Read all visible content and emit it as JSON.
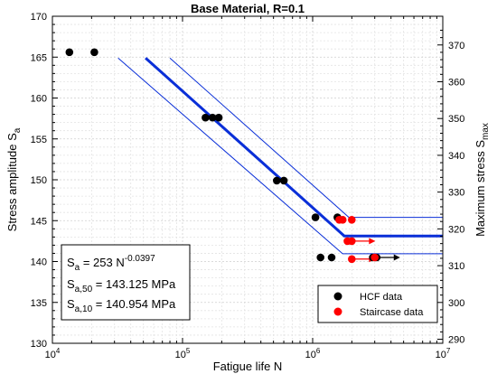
{
  "chart_data": {
    "type": "scatter",
    "title": "Base Material, R=0.1",
    "xlabel": "Fatigue life N",
    "ylabel": {
      "main": "Stress amplitude S",
      "sub": "a"
    },
    "y2label": {
      "main": "Maximum stress S",
      "sub": "max"
    },
    "xscale": "log",
    "xlim": [
      10000,
      10000000
    ],
    "xticks": [
      {
        "value": 10000,
        "base": "10",
        "exp": "4"
      },
      {
        "value": 100000,
        "base": "10",
        "exp": "5"
      },
      {
        "value": 1000000,
        "base": "10",
        "exp": "6"
      },
      {
        "value": 10000000,
        "base": "10",
        "exp": "7"
      }
    ],
    "ylim": [
      130,
      170
    ],
    "yticks": [
      "130",
      "135",
      "140",
      "145",
      "150",
      "155",
      "160",
      "165",
      "170"
    ],
    "y2lim": [
      288.9,
      377.8
    ],
    "y2ticks": [
      "290",
      "300",
      "310",
      "320",
      "330",
      "340",
      "350",
      "360",
      "370"
    ],
    "grid": true,
    "legend_position": "bottom-right",
    "series": [
      {
        "name": "HCF data",
        "color": "#000000",
        "points": [
          [
            13500,
            165.6
          ],
          [
            21000,
            165.6
          ],
          [
            150000,
            157.6
          ],
          [
            170000,
            157.6
          ],
          [
            190000,
            157.6
          ],
          [
            530000,
            149.9
          ],
          [
            600000,
            149.9
          ],
          [
            1050000,
            145.4
          ],
          [
            1550000,
            145.4
          ],
          [
            1150000,
            140.5
          ],
          [
            1400000,
            140.5
          ],
          [
            2900000,
            140.5
          ],
          [
            3100000,
            140.5
          ]
        ]
      },
      {
        "name": "Staircase data",
        "color": "#ff0000",
        "points": [
          [
            1600000,
            145.1
          ],
          [
            1700000,
            145.1
          ],
          [
            2000000,
            145.1
          ],
          [
            1850000,
            142.5
          ],
          [
            2000000,
            142.5
          ],
          [
            2000000,
            140.3
          ],
          [
            3000000,
            140.5
          ]
        ]
      }
    ],
    "runouts": [
      {
        "x": 2000000,
        "y": 142.5,
        "color": "#ff0000"
      },
      {
        "x": 2000000,
        "y": 140.3,
        "color": "#ff0000"
      },
      {
        "x": 3100000,
        "y": 140.5,
        "color": "#000000"
      }
    ],
    "lines": [
      {
        "name": "median",
        "color": "#0a2fd8",
        "width": 3,
        "points": [
          [
            52000,
            164.9
          ],
          [
            1750000,
            143.125
          ],
          [
            10000000,
            143.125
          ]
        ]
      },
      {
        "name": "upper",
        "color": "#0a2fd8",
        "width": 1,
        "points": [
          [
            80000,
            164.9
          ],
          [
            1900000,
            145.4
          ],
          [
            10000000,
            145.4
          ]
        ]
      },
      {
        "name": "lower",
        "color": "#0a2fd8",
        "width": 1,
        "points": [
          [
            32000,
            164.9
          ],
          [
            1700000,
            140.954
          ],
          [
            10000000,
            140.954
          ]
        ]
      }
    ]
  },
  "annotation": {
    "line1": {
      "pre": "S",
      "sub": "a",
      "mid": " = 253 N",
      "sup": "-0.0397"
    },
    "line2": {
      "pre": "S",
      "sub": "a,50",
      "mid": " = 143.125 MPa"
    },
    "line3": {
      "pre": "S",
      "sub": "a,10",
      "mid": " = 140.954 MPa"
    }
  }
}
